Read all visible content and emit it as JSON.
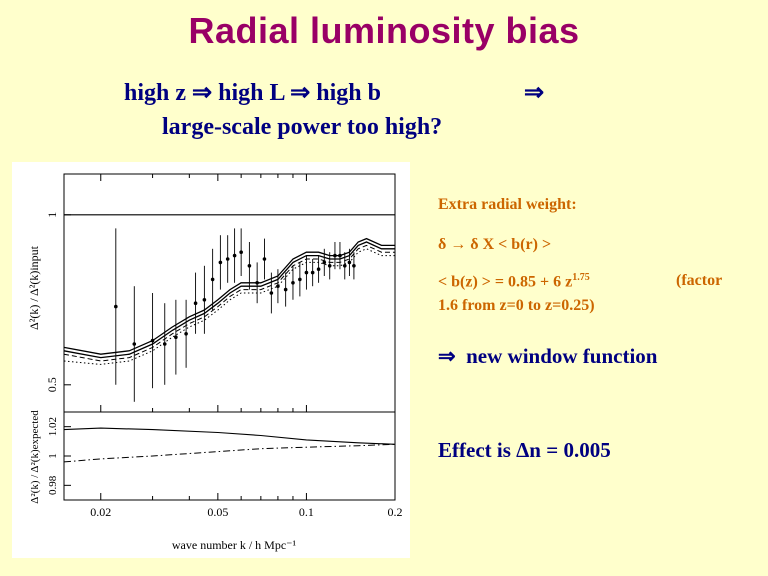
{
  "slide": {
    "title": "Radial luminosity bias",
    "subtitle_line1": "high z ⇒ high L ⇒ high b",
    "subtitle_arrow": "⇒",
    "subtitle_line2": "large-scale power too high?"
  },
  "side_notes": {
    "extra_weight_label": "Extra radial weight:",
    "delta_line": "δ → δ X < b(r) >",
    "bz_formula_prefix": "< b(z) > = 0.85 + 6 z",
    "bz_exponent": "1.75",
    "bz_factor": "(factor",
    "bz_range": "1.6 from z=0 to z=0.25)",
    "new_window_arrow": "⇒",
    "new_window_text": "new window function",
    "effect_text": "Effect is Δn = 0.005"
  },
  "chart_data": [
    {
      "type": "scatter",
      "title": "",
      "ylabel": "Δ²(k) / Δ²(k)input",
      "xlabel": "",
      "xscale": "log",
      "xlim": [
        0.015,
        0.2
      ],
      "ylim": [
        0.42,
        1.12
      ],
      "yticks": [
        0.5,
        1
      ],
      "ytick_labels": [
        "0.5",
        "1"
      ],
      "reference_line_y": 1.0,
      "points": [
        {
          "x": 0.0225,
          "y": 0.73,
          "err": 0.23
        },
        {
          "x": 0.026,
          "y": 0.62,
          "err": 0.17
        },
        {
          "x": 0.03,
          "y": 0.63,
          "err": 0.14
        },
        {
          "x": 0.033,
          "y": 0.62,
          "err": 0.12
        },
        {
          "x": 0.036,
          "y": 0.64,
          "err": 0.11
        },
        {
          "x": 0.039,
          "y": 0.65,
          "err": 0.1
        },
        {
          "x": 0.042,
          "y": 0.74,
          "err": 0.09
        },
        {
          "x": 0.045,
          "y": 0.75,
          "err": 0.1
        },
        {
          "x": 0.048,
          "y": 0.81,
          "err": 0.09
        },
        {
          "x": 0.051,
          "y": 0.86,
          "err": 0.08
        },
        {
          "x": 0.054,
          "y": 0.87,
          "err": 0.07
        },
        {
          "x": 0.057,
          "y": 0.88,
          "err": 0.08
        },
        {
          "x": 0.06,
          "y": 0.89,
          "err": 0.07
        },
        {
          "x": 0.064,
          "y": 0.85,
          "err": 0.07
        },
        {
          "x": 0.068,
          "y": 0.8,
          "err": 0.06
        },
        {
          "x": 0.072,
          "y": 0.87,
          "err": 0.06
        },
        {
          "x": 0.076,
          "y": 0.77,
          "err": 0.06
        },
        {
          "x": 0.08,
          "y": 0.79,
          "err": 0.05
        },
        {
          "x": 0.085,
          "y": 0.78,
          "err": 0.05
        },
        {
          "x": 0.09,
          "y": 0.8,
          "err": 0.05
        },
        {
          "x": 0.095,
          "y": 0.81,
          "err": 0.05
        },
        {
          "x": 0.1,
          "y": 0.83,
          "err": 0.05
        },
        {
          "x": 0.105,
          "y": 0.83,
          "err": 0.04
        },
        {
          "x": 0.11,
          "y": 0.84,
          "err": 0.04
        },
        {
          "x": 0.115,
          "y": 0.86,
          "err": 0.04
        },
        {
          "x": 0.12,
          "y": 0.85,
          "err": 0.04
        },
        {
          "x": 0.125,
          "y": 0.88,
          "err": 0.04
        },
        {
          "x": 0.13,
          "y": 0.88,
          "err": 0.04
        },
        {
          "x": 0.135,
          "y": 0.85,
          "err": 0.04
        },
        {
          "x": 0.14,
          "y": 0.86,
          "err": 0.04
        },
        {
          "x": 0.145,
          "y": 0.85,
          "err": 0.04
        }
      ],
      "curves": [
        {
          "style": "solid-upper",
          "x": [
            0.015,
            0.02,
            0.025,
            0.03,
            0.035,
            0.04,
            0.045,
            0.05,
            0.055,
            0.06,
            0.065,
            0.07,
            0.08,
            0.09,
            0.1,
            0.11,
            0.12,
            0.13,
            0.14,
            0.15,
            0.16,
            0.18,
            0.2
          ],
          "y": [
            0.61,
            0.59,
            0.6,
            0.63,
            0.67,
            0.7,
            0.72,
            0.75,
            0.78,
            0.8,
            0.8,
            0.8,
            0.82,
            0.87,
            0.89,
            0.89,
            0.88,
            0.88,
            0.89,
            0.92,
            0.93,
            0.91,
            0.91
          ]
        },
        {
          "style": "solid-lower",
          "x": [
            0.015,
            0.02,
            0.025,
            0.03,
            0.035,
            0.04,
            0.045,
            0.05,
            0.055,
            0.06,
            0.065,
            0.07,
            0.08,
            0.09,
            0.1,
            0.11,
            0.12,
            0.13,
            0.14,
            0.15,
            0.16,
            0.18,
            0.2
          ],
          "y": [
            0.6,
            0.58,
            0.59,
            0.62,
            0.66,
            0.69,
            0.71,
            0.74,
            0.77,
            0.79,
            0.79,
            0.79,
            0.81,
            0.86,
            0.88,
            0.88,
            0.87,
            0.87,
            0.88,
            0.91,
            0.92,
            0.9,
            0.9
          ]
        },
        {
          "style": "dashed",
          "x": [
            0.015,
            0.02,
            0.025,
            0.03,
            0.035,
            0.04,
            0.045,
            0.05,
            0.055,
            0.06,
            0.065,
            0.07,
            0.08,
            0.09,
            0.1,
            0.11,
            0.12,
            0.13,
            0.14,
            0.15,
            0.16,
            0.18,
            0.2
          ],
          "y": [
            0.59,
            0.57,
            0.58,
            0.61,
            0.65,
            0.68,
            0.7,
            0.73,
            0.76,
            0.78,
            0.78,
            0.78,
            0.8,
            0.85,
            0.87,
            0.87,
            0.86,
            0.86,
            0.87,
            0.9,
            0.91,
            0.89,
            0.89
          ]
        },
        {
          "style": "dotted",
          "x": [
            0.015,
            0.02,
            0.025,
            0.03,
            0.035,
            0.04,
            0.045,
            0.05,
            0.055,
            0.06,
            0.065,
            0.07,
            0.08,
            0.09,
            0.1,
            0.11,
            0.12,
            0.13,
            0.14,
            0.15,
            0.16,
            0.18,
            0.2
          ],
          "y": [
            0.57,
            0.56,
            0.57,
            0.6,
            0.64,
            0.67,
            0.69,
            0.72,
            0.75,
            0.77,
            0.77,
            0.77,
            0.79,
            0.84,
            0.86,
            0.86,
            0.85,
            0.85,
            0.86,
            0.89,
            0.9,
            0.88,
            0.88
          ]
        }
      ]
    },
    {
      "type": "line",
      "title": "",
      "ylabel": "Δ²(k) / Δ²(k)expected",
      "xlabel": "wave number k / h Mpc⁻¹",
      "xscale": "log",
      "xlim": [
        0.015,
        0.2
      ],
      "ylim": [
        0.97,
        1.03
      ],
      "yticks": [
        0.98,
        1,
        1.02
      ],
      "ytick_labels": [
        "0.98",
        "1",
        "1.02"
      ],
      "xticks": [
        0.02,
        0.05,
        0.1,
        0.2
      ],
      "xtick_labels": [
        "0.02",
        "0.05",
        "0.1",
        "0.2"
      ],
      "series": [
        {
          "style": "solid",
          "x": [
            0.015,
            0.02,
            0.03,
            0.05,
            0.07,
            0.1,
            0.15,
            0.2
          ],
          "y": [
            1.018,
            1.019,
            1.018,
            1.016,
            1.014,
            1.011,
            1.009,
            1.008
          ]
        },
        {
          "style": "dash-dot",
          "x": [
            0.015,
            0.02,
            0.03,
            0.05,
            0.07,
            0.1,
            0.15,
            0.2
          ],
          "y": [
            0.996,
            0.998,
            1.0,
            1.003,
            1.005,
            1.006,
            1.007,
            1.008
          ]
        }
      ]
    }
  ]
}
